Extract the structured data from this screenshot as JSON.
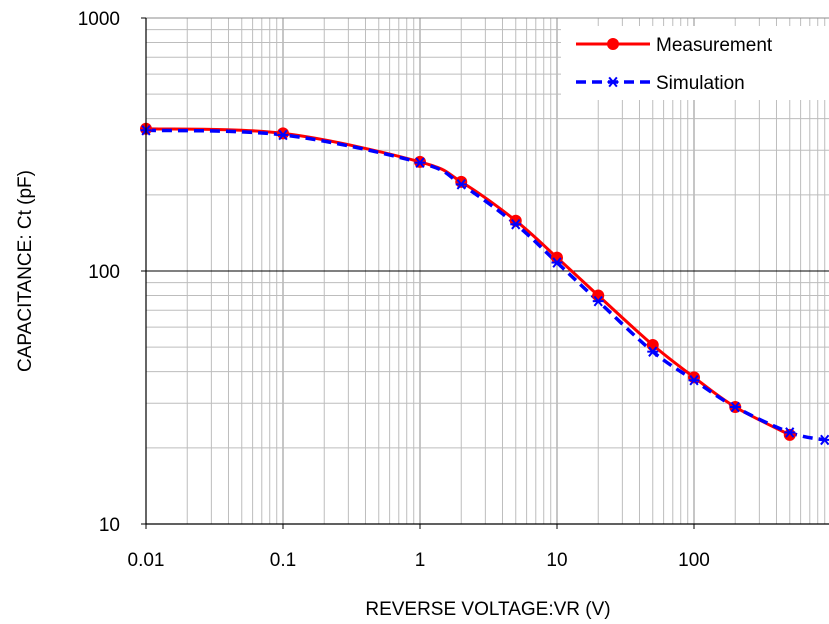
{
  "chart_data": {
    "type": "line",
    "xlabel": "REVERSE VOLTAGE:VR (V)",
    "ylabel": "CAPACITANCE:  Ct (pF)",
    "x_scale": "log",
    "y_scale": "log",
    "xlim": [
      0.01,
      900
    ],
    "ylim": [
      10,
      1000
    ],
    "x_ticks": [
      "0.01",
      "0.1",
      "1",
      "10",
      "100"
    ],
    "x_tick_values": [
      0.01,
      0.1,
      1,
      10,
      100
    ],
    "y_ticks": [
      "10",
      "100",
      "1000"
    ],
    "y_tick_values": [
      10,
      100,
      1000
    ],
    "grid": true,
    "legend_position": "top-right",
    "series": [
      {
        "name": "Measurement",
        "color": "#ff0000",
        "line_style": "solid",
        "marker": "circle",
        "x": [
          0.01,
          0.1,
          1,
          2,
          5,
          10,
          20,
          50,
          100,
          200,
          500
        ],
        "y": [
          365,
          350,
          270,
          225,
          158,
          113,
          80,
          51,
          38,
          29,
          22.5
        ]
      },
      {
        "name": "Simulation",
        "color": "#0000ff",
        "line_style": "dashed",
        "marker": "asterisk",
        "x": [
          0.01,
          0.1,
          1,
          2,
          5,
          10,
          20,
          50,
          100,
          200,
          500,
          900
        ],
        "y": [
          360,
          345,
          268,
          220,
          153,
          108,
          76,
          48,
          37,
          29,
          23,
          21.5
        ]
      }
    ]
  }
}
